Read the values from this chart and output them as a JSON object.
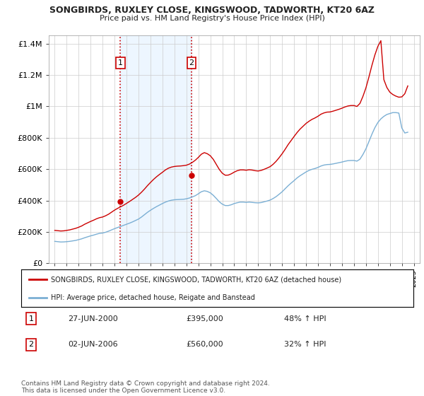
{
  "title": "SONGBIRDS, RUXLEY CLOSE, KINGSWOOD, TADWORTH, KT20 6AZ",
  "subtitle": "Price paid vs. HM Land Registry's House Price Index (HPI)",
  "legend_line1": "SONGBIRDS, RUXLEY CLOSE, KINGSWOOD, TADWORTH, KT20 6AZ (detached house)",
  "legend_line2": "HPI: Average price, detached house, Reigate and Banstead",
  "transaction1_date": "27-JUN-2000",
  "transaction1_price": "£395,000",
  "transaction1_hpi": "48% ↑ HPI",
  "transaction1_year": 2000.49,
  "transaction1_value": 395000,
  "transaction2_date": "02-JUN-2006",
  "transaction2_price": "£560,000",
  "transaction2_hpi": "32% ↑ HPI",
  "transaction2_year": 2006.42,
  "transaction2_value": 560000,
  "footer": "Contains HM Land Registry data © Crown copyright and database right 2024.\nThis data is licensed under the Open Government Licence v3.0.",
  "hpi_color": "#7bafd4",
  "price_color": "#cc0000",
  "vline_color": "#cc0000",
  "shade_color": "#ddeeff",
  "background_color": "#ffffff",
  "ylim": [
    0,
    1450000
  ],
  "yticks": [
    0,
    200000,
    400000,
    600000,
    800000,
    1000000,
    1200000,
    1400000
  ],
  "ytick_labels": [
    "£0",
    "£200K",
    "£400K",
    "£600K",
    "£800K",
    "£1M",
    "£1.2M",
    "£1.4M"
  ],
  "xlim_start": 1994.5,
  "xlim_end": 2025.5,
  "hpi_data_years": [
    1995.0,
    1995.25,
    1995.5,
    1995.75,
    1996.0,
    1996.25,
    1996.5,
    1996.75,
    1997.0,
    1997.25,
    1997.5,
    1997.75,
    1998.0,
    1998.25,
    1998.5,
    1998.75,
    1999.0,
    1999.25,
    1999.5,
    1999.75,
    2000.0,
    2000.25,
    2000.5,
    2000.75,
    2001.0,
    2001.25,
    2001.5,
    2001.75,
    2002.0,
    2002.25,
    2002.5,
    2002.75,
    2003.0,
    2003.25,
    2003.5,
    2003.75,
    2004.0,
    2004.25,
    2004.5,
    2004.75,
    2005.0,
    2005.25,
    2005.5,
    2005.75,
    2006.0,
    2006.25,
    2006.5,
    2006.75,
    2007.0,
    2007.25,
    2007.5,
    2007.75,
    2008.0,
    2008.25,
    2008.5,
    2008.75,
    2009.0,
    2009.25,
    2009.5,
    2009.75,
    2010.0,
    2010.25,
    2010.5,
    2010.75,
    2011.0,
    2011.25,
    2011.5,
    2011.75,
    2012.0,
    2012.25,
    2012.5,
    2012.75,
    2013.0,
    2013.25,
    2013.5,
    2013.75,
    2014.0,
    2014.25,
    2014.5,
    2014.75,
    2015.0,
    2015.25,
    2015.5,
    2015.75,
    2016.0,
    2016.25,
    2016.5,
    2016.75,
    2017.0,
    2017.25,
    2017.5,
    2017.75,
    2018.0,
    2018.25,
    2018.5,
    2018.75,
    2019.0,
    2019.25,
    2019.5,
    2019.75,
    2020.0,
    2020.25,
    2020.5,
    2020.75,
    2021.0,
    2021.25,
    2021.5,
    2021.75,
    2022.0,
    2022.25,
    2022.5,
    2022.75,
    2023.0,
    2023.25,
    2023.5,
    2023.75,
    2024.0,
    2024.25,
    2024.5
  ],
  "hpi_data_values": [
    140000,
    138000,
    136000,
    136500,
    138000,
    140000,
    143000,
    146000,
    151000,
    156000,
    163000,
    169000,
    175000,
    180000,
    186000,
    191000,
    193000,
    198000,
    205000,
    213000,
    221000,
    228000,
    235000,
    242000,
    249000,
    256000,
    264000,
    273000,
    282000,
    295000,
    310000,
    325000,
    338000,
    350000,
    361000,
    371000,
    381000,
    390000,
    397000,
    402000,
    405000,
    406000,
    407000,
    408000,
    411000,
    416000,
    423000,
    431000,
    443000,
    456000,
    462000,
    458000,
    449000,
    433000,
    413000,
    392000,
    377000,
    368000,
    368000,
    373000,
    381000,
    386000,
    390000,
    390000,
    388000,
    390000,
    388000,
    386000,
    385000,
    387000,
    392000,
    397000,
    403000,
    413000,
    425000,
    440000,
    456000,
    475000,
    494000,
    511000,
    527000,
    544000,
    558000,
    570000,
    582000,
    592000,
    599000,
    604000,
    611000,
    620000,
    626000,
    629000,
    630000,
    633000,
    637000,
    641000,
    645000,
    650000,
    654000,
    655000,
    655000,
    651000,
    663000,
    693000,
    729000,
    775000,
    822000,
    864000,
    897000,
    920000,
    936000,
    948000,
    954000,
    960000,
    960000,
    957000,
    862000,
    830000,
    835000
  ],
  "prop_data_years": [
    1995.0,
    1995.25,
    1995.5,
    1995.75,
    1996.0,
    1996.25,
    1996.5,
    1996.75,
    1997.0,
    1997.25,
    1997.5,
    1997.75,
    1998.0,
    1998.25,
    1998.5,
    1998.75,
    1999.0,
    1999.25,
    1999.5,
    1999.75,
    2000.0,
    2000.25,
    2000.5,
    2000.75,
    2001.0,
    2001.25,
    2001.5,
    2001.75,
    2002.0,
    2002.25,
    2002.5,
    2002.75,
    2003.0,
    2003.25,
    2003.5,
    2003.75,
    2004.0,
    2004.25,
    2004.5,
    2004.75,
    2005.0,
    2005.25,
    2005.5,
    2005.75,
    2006.0,
    2006.25,
    2006.5,
    2006.75,
    2007.0,
    2007.25,
    2007.5,
    2007.75,
    2008.0,
    2008.25,
    2008.5,
    2008.75,
    2009.0,
    2009.25,
    2009.5,
    2009.75,
    2010.0,
    2010.25,
    2010.5,
    2010.75,
    2011.0,
    2011.25,
    2011.5,
    2011.75,
    2012.0,
    2012.25,
    2012.5,
    2012.75,
    2013.0,
    2013.25,
    2013.5,
    2013.75,
    2014.0,
    2014.25,
    2014.5,
    2014.75,
    2015.0,
    2015.25,
    2015.5,
    2015.75,
    2016.0,
    2016.25,
    2016.5,
    2016.75,
    2017.0,
    2017.25,
    2017.5,
    2017.75,
    2018.0,
    2018.25,
    2018.5,
    2018.75,
    2019.0,
    2019.25,
    2019.5,
    2019.75,
    2020.0,
    2020.25,
    2020.5,
    2020.75,
    2021.0,
    2021.25,
    2021.5,
    2021.75,
    2022.0,
    2022.25,
    2022.5,
    2022.75,
    2023.0,
    2023.25,
    2023.5,
    2023.75,
    2024.0,
    2024.25,
    2024.5
  ],
  "prop_data_values": [
    210000,
    208000,
    206000,
    207000,
    210000,
    213000,
    218000,
    223000,
    230000,
    238000,
    249000,
    258000,
    267000,
    275000,
    284000,
    291000,
    295000,
    303000,
    313000,
    326000,
    339000,
    350000,
    360000,
    370000,
    382000,
    394000,
    407000,
    420000,
    435000,
    453000,
    473000,
    495000,
    515000,
    534000,
    551000,
    566000,
    580000,
    595000,
    606000,
    613000,
    617000,
    619000,
    620000,
    622000,
    625000,
    632000,
    643000,
    657000,
    675000,
    695000,
    705000,
    698000,
    685000,
    662000,
    630000,
    598000,
    574000,
    561000,
    562000,
    570000,
    581000,
    590000,
    595000,
    595000,
    593000,
    596000,
    594000,
    590000,
    588000,
    592000,
    599000,
    607000,
    616000,
    631000,
    650000,
    673000,
    698000,
    726000,
    756000,
    782000,
    808000,
    833000,
    855000,
    873000,
    891000,
    905000,
    917000,
    926000,
    937000,
    950000,
    958000,
    963000,
    964000,
    969000,
    975000,
    981000,
    988000,
    996000,
    1002000,
    1005000,
    1005000,
    999000,
    1018000,
    1063000,
    1117000,
    1186000,
    1260000,
    1327000,
    1382000,
    1418000,
    1170000,
    1120000,
    1090000,
    1075000,
    1065000,
    1058000,
    1060000,
    1080000,
    1130000
  ]
}
